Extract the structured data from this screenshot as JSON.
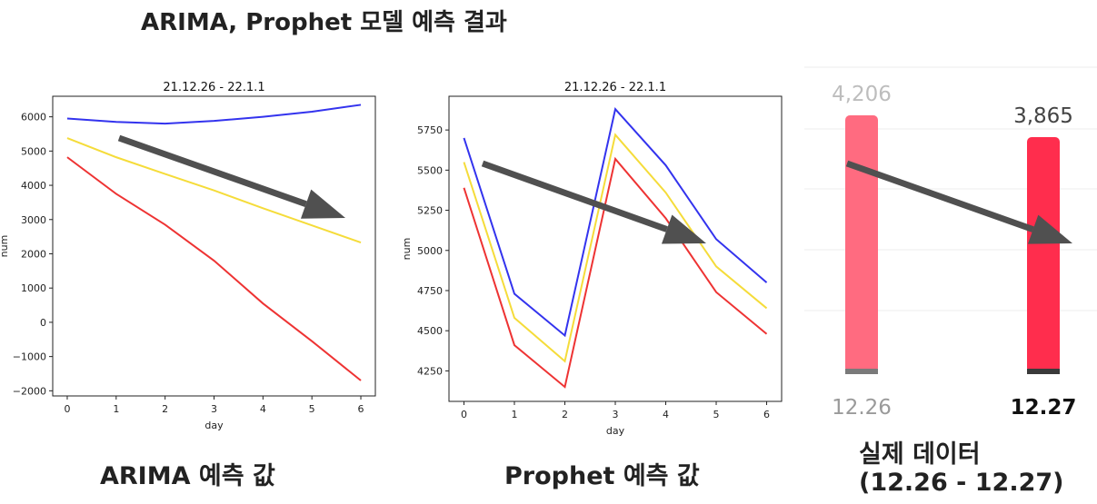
{
  "title": "ARIMA, Prophet 모델 예측 결과",
  "captions": {
    "arima": "ARIMA 예측 값",
    "prophet": "Prophet 예측 값",
    "actual_line1": "실제 데이터",
    "actual_line2": "(12.26 - 12.27)"
  },
  "colors": {
    "blue": "#3333ee",
    "yellow": "#f5dc3a",
    "red": "#ee3333",
    "arrow": "#505050",
    "bar_light": "#ff6b80",
    "bar_dark": "#ff2d4d"
  },
  "chart_data": [
    {
      "type": "line",
      "title": "21.12.26 - 22.1.1",
      "xlabel": "day",
      "ylabel": "num",
      "x": [
        0,
        1,
        2,
        3,
        4,
        5,
        6
      ],
      "xticks": [
        "0",
        "1",
        "2",
        "3",
        "4",
        "5",
        "6"
      ],
      "ylim": [
        -2150,
        6600
      ],
      "yticks": [
        -2000,
        -1000,
        0,
        1000,
        2000,
        3000,
        4000,
        5000,
        6000
      ],
      "ytick_labels": [
        "−2000",
        "−1000",
        "0",
        "1000",
        "2000",
        "3000",
        "4000",
        "5000",
        "6000"
      ],
      "series": [
        {
          "color": "blue",
          "values": [
            5950,
            5850,
            5800,
            5880,
            6000,
            6150,
            6350
          ]
        },
        {
          "color": "yellow",
          "values": [
            5380,
            4820,
            4330,
            3850,
            3330,
            2830,
            2330
          ]
        },
        {
          "color": "red",
          "values": [
            4820,
            3750,
            2850,
            1800,
            550,
            -550,
            -1700
          ]
        }
      ]
    },
    {
      "type": "line",
      "title": "21.12.26 - 22.1.1",
      "xlabel": "day",
      "ylabel": "num",
      "x": [
        0,
        1,
        2,
        3,
        4,
        5,
        6
      ],
      "xticks": [
        "0",
        "1",
        "2",
        "3",
        "4",
        "5",
        "6"
      ],
      "ylim": [
        4060,
        5960
      ],
      "yticks": [
        4250,
        4500,
        4750,
        5000,
        5250,
        5500,
        5750
      ],
      "ytick_labels": [
        "4250",
        "4500",
        "4750",
        "5000",
        "5250",
        "5500",
        "5750"
      ],
      "series": [
        {
          "color": "blue",
          "values": [
            5700,
            4730,
            4470,
            5880,
            5530,
            5070,
            4800
          ]
        },
        {
          "color": "yellow",
          "values": [
            5550,
            4580,
            4310,
            5720,
            5360,
            4900,
            4640
          ]
        },
        {
          "color": "red",
          "values": [
            5390,
            4410,
            4150,
            5570,
            5200,
            4740,
            4480
          ]
        }
      ]
    },
    {
      "type": "bar",
      "categories": [
        "12.26",
        "12.27"
      ],
      "values": [
        4206,
        3865
      ],
      "value_labels": [
        "4,206",
        "3,865"
      ],
      "ylim": [
        0,
        4206
      ]
    }
  ]
}
